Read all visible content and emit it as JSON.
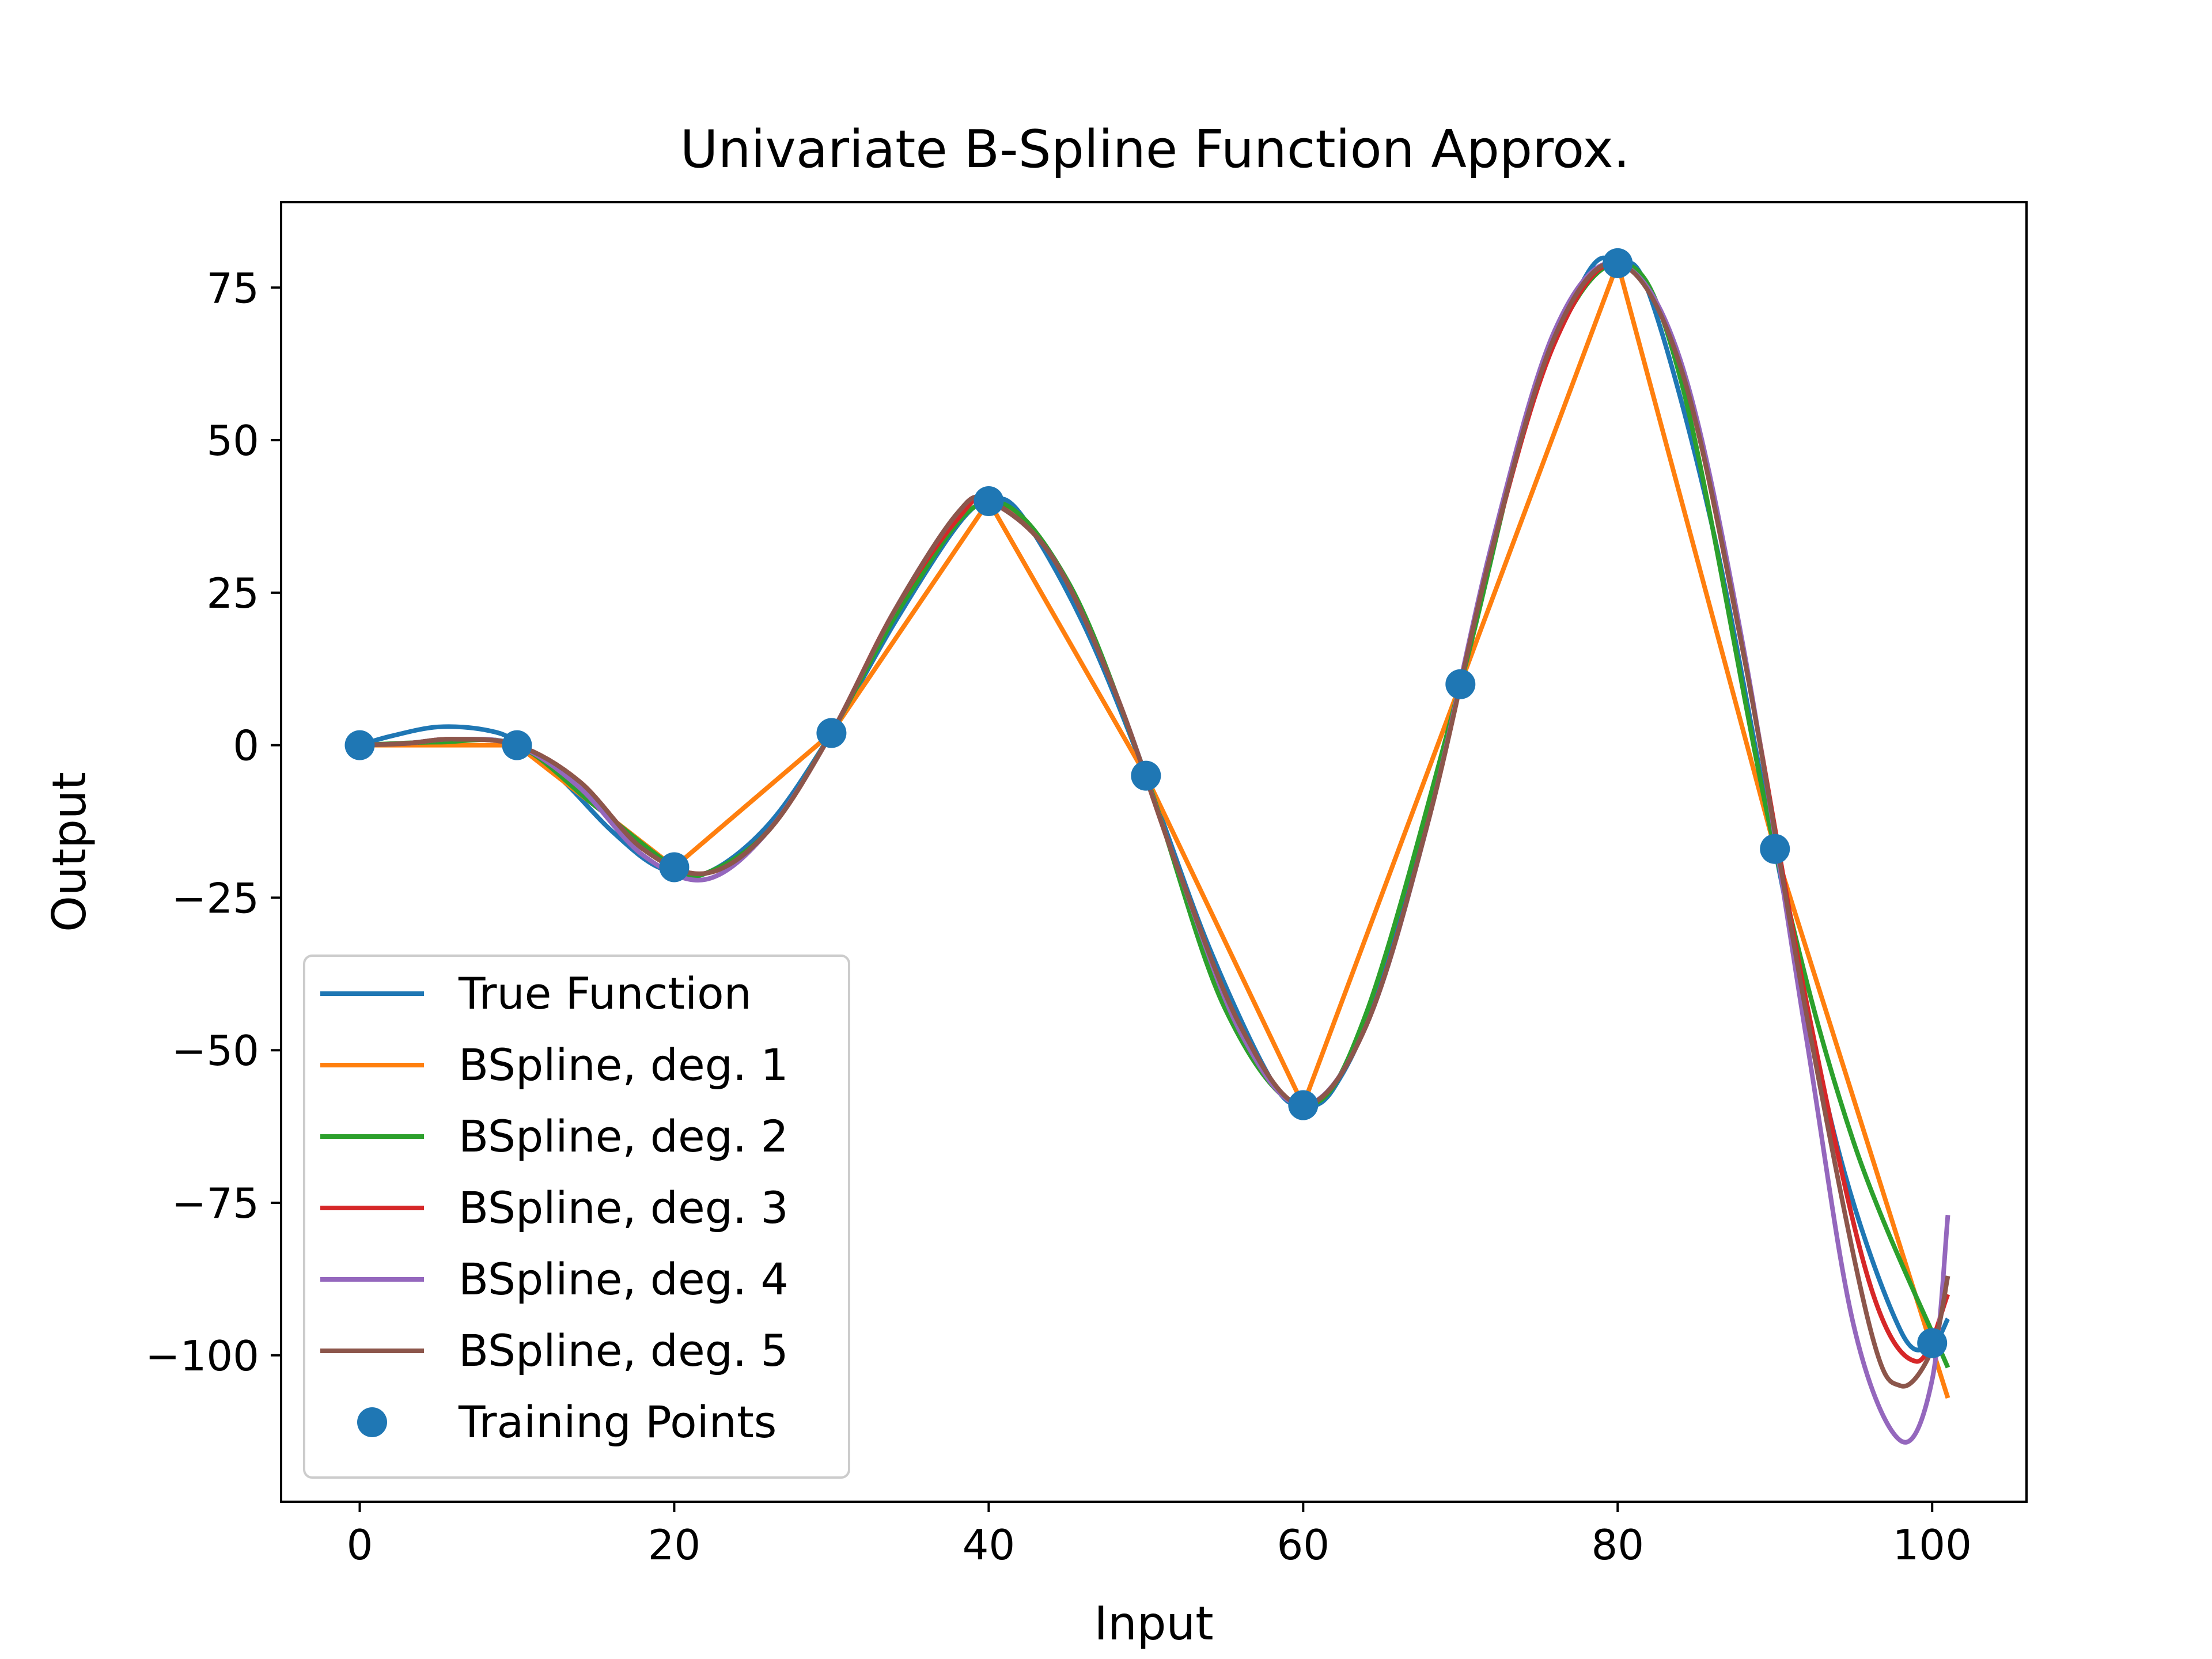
{
  "chart_data": {
    "type": "line",
    "title": "Univariate B-Spline Function Approx.",
    "xlabel": "Input",
    "ylabel": "Output",
    "xlim": [
      -5,
      106
    ],
    "ylim": [
      -124,
      89
    ],
    "x_ticks": [
      0,
      20,
      40,
      60,
      80,
      100
    ],
    "y_ticks": [
      75,
      50,
      25,
      0,
      -25,
      -50,
      -75,
      -100
    ],
    "y_tick_labels": [
      "75",
      "50",
      "25",
      "0",
      "−25",
      "−50",
      "−75",
      "−100"
    ],
    "grid": false,
    "legend_position": "lower-left",
    "colors": {
      "true_function": "#1f77b4",
      "deg1": "#ff7f0e",
      "deg2": "#2ca02c",
      "deg3": "#d62728",
      "deg4": "#9467bd",
      "deg5": "#8c564b",
      "points": "#1f77b4"
    },
    "series": [
      {
        "name": "True Function",
        "color": "#1f77b4",
        "points": [
          [
            0,
            0
          ],
          [
            2,
            1.5
          ],
          [
            5,
            3
          ],
          [
            8,
            2.5
          ],
          [
            10,
            0.5
          ],
          [
            13,
            -6
          ],
          [
            16,
            -14
          ],
          [
            19,
            -20
          ],
          [
            22,
            -21
          ],
          [
            26,
            -13
          ],
          [
            30,
            2
          ],
          [
            34,
            20
          ],
          [
            38,
            36
          ],
          [
            40,
            40
          ],
          [
            42,
            38
          ],
          [
            46,
            20
          ],
          [
            50,
            -5
          ],
          [
            54,
            -33
          ],
          [
            58,
            -55
          ],
          [
            60,
            -59
          ],
          [
            62,
            -56
          ],
          [
            65,
            -38
          ],
          [
            70,
            10
          ],
          [
            74,
            52
          ],
          [
            78,
            77
          ],
          [
            80,
            79
          ],
          [
            82,
            74
          ],
          [
            86,
            36
          ],
          [
            90,
            -17
          ],
          [
            94,
            -66
          ],
          [
            98,
            -96
          ],
          [
            100,
            -98
          ],
          [
            101,
            -94
          ]
        ]
      },
      {
        "name": "BSpline, deg. 1",
        "color": "#ff7f0e",
        "points": [
          [
            0,
            0
          ],
          [
            10,
            0
          ],
          [
            20,
            -20
          ],
          [
            30,
            2
          ],
          [
            40,
            40
          ],
          [
            50,
            -5
          ],
          [
            60,
            -59
          ],
          [
            70,
            10
          ],
          [
            80,
            79
          ],
          [
            90,
            -17
          ],
          [
            101,
            -107
          ]
        ]
      },
      {
        "name": "BSpline, deg. 2",
        "color": "#2ca02c",
        "points": [
          [
            0,
            0
          ],
          [
            5,
            0.5
          ],
          [
            10,
            0
          ],
          [
            15,
            -10
          ],
          [
            20,
            -20
          ],
          [
            22,
            -21
          ],
          [
            26,
            -14
          ],
          [
            30,
            2
          ],
          [
            35,
            25
          ],
          [
            40,
            40
          ],
          [
            45,
            27
          ],
          [
            50,
            -5
          ],
          [
            55,
            -43
          ],
          [
            60,
            -59
          ],
          [
            64,
            -44
          ],
          [
            70,
            10
          ],
          [
            75,
            60
          ],
          [
            80,
            79
          ],
          [
            84,
            60
          ],
          [
            90,
            -17
          ],
          [
            95,
            -65
          ],
          [
            101,
            -102
          ]
        ]
      },
      {
        "name": "BSpline, deg. 3",
        "color": "#d62728",
        "points": [
          [
            0,
            0
          ],
          [
            3,
            0.3
          ],
          [
            6,
            1
          ],
          [
            10,
            0
          ],
          [
            14,
            -6
          ],
          [
            18,
            -17
          ],
          [
            22,
            -21
          ],
          [
            26,
            -14
          ],
          [
            30,
            2
          ],
          [
            34,
            22
          ],
          [
            38,
            37
          ],
          [
            40,
            40
          ],
          [
            44,
            31
          ],
          [
            48,
            9
          ],
          [
            52,
            -20
          ],
          [
            56,
            -46
          ],
          [
            60,
            -59
          ],
          [
            64,
            -46
          ],
          [
            68,
            -12
          ],
          [
            72,
            32
          ],
          [
            76,
            66
          ],
          [
            80,
            79
          ],
          [
            84,
            62
          ],
          [
            88,
            15
          ],
          [
            92,
            -42
          ],
          [
            96,
            -88
          ],
          [
            99,
            -101
          ],
          [
            101,
            -90
          ]
        ]
      },
      {
        "name": "BSpline, deg. 4",
        "color": "#9467bd",
        "points": [
          [
            0,
            0
          ],
          [
            3,
            0.3
          ],
          [
            6,
            1
          ],
          [
            10,
            0
          ],
          [
            14,
            -7
          ],
          [
            18,
            -18
          ],
          [
            22,
            -22
          ],
          [
            26,
            -14
          ],
          [
            30,
            2
          ],
          [
            34,
            22
          ],
          [
            38,
            38
          ],
          [
            40,
            40
          ],
          [
            44,
            31
          ],
          [
            48,
            9
          ],
          [
            52,
            -20
          ],
          [
            56,
            -47
          ],
          [
            60,
            -59
          ],
          [
            64,
            -46
          ],
          [
            68,
            -12
          ],
          [
            72,
            33
          ],
          [
            76,
            68
          ],
          [
            80,
            79
          ],
          [
            84,
            63
          ],
          [
            88,
            16
          ],
          [
            92,
            -48
          ],
          [
            95,
            -95
          ],
          [
            98,
            -114
          ],
          [
            100,
            -104
          ],
          [
            101,
            -77
          ]
        ]
      },
      {
        "name": "BSpline, deg. 5",
        "color": "#8c564b",
        "points": [
          [
            0,
            0
          ],
          [
            3,
            0.3
          ],
          [
            6,
            1
          ],
          [
            10,
            0
          ],
          [
            14,
            -6
          ],
          [
            18,
            -17
          ],
          [
            22,
            -21
          ],
          [
            26,
            -14
          ],
          [
            30,
            2
          ],
          [
            34,
            22
          ],
          [
            38,
            38
          ],
          [
            40,
            40
          ],
          [
            44,
            31
          ],
          [
            48,
            9
          ],
          [
            52,
            -20
          ],
          [
            56,
            -46
          ],
          [
            60,
            -59
          ],
          [
            64,
            -46
          ],
          [
            68,
            -12
          ],
          [
            72,
            32
          ],
          [
            76,
            67
          ],
          [
            80,
            79
          ],
          [
            84,
            62
          ],
          [
            88,
            15
          ],
          [
            92,
            -44
          ],
          [
            96,
            -95
          ],
          [
            98,
            -105
          ],
          [
            100,
            -99
          ],
          [
            101,
            -87
          ]
        ]
      }
    ],
    "training_points": {
      "name": "Training Points",
      "color": "#1f77b4",
      "x": [
        0,
        10,
        20,
        30,
        40,
        50,
        60,
        70,
        80,
        90,
        100
      ],
      "y": [
        0,
        0,
        -20,
        2,
        40,
        -5,
        -59,
        10,
        79,
        -17,
        -98
      ]
    }
  }
}
